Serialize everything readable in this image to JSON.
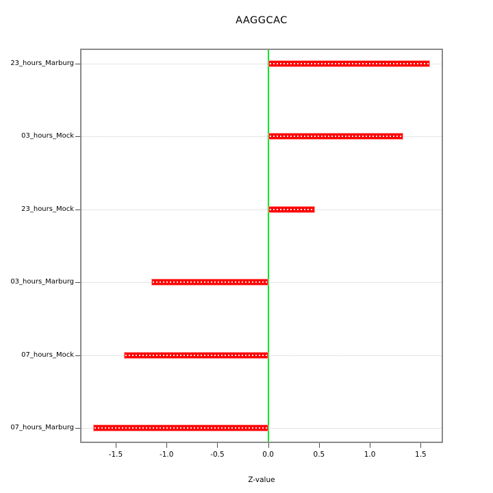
{
  "chart_data": {
    "type": "bar",
    "orientation": "horizontal",
    "title": "AAGGCAC",
    "xlabel": "Z-value",
    "ylabel": "",
    "categories_top_to_bottom": [
      "23_hours_Marburg",
      "03_hours_Mock",
      "23_hours_Mock",
      "03_hours_Marburg",
      "07_hours_Mock",
      "07_hours_Marburg"
    ],
    "values_top_to_bottom": [
      1.59,
      1.33,
      0.46,
      -1.15,
      -1.42,
      -1.72
    ],
    "x_ticks": [
      -1.5,
      -1.0,
      -0.5,
      0.0,
      0.5,
      1.0,
      1.5
    ],
    "x_tick_labels": [
      "-1.5",
      "-1.0",
      "-0.5",
      "0.0",
      "0.5",
      "1.0",
      "1.5"
    ],
    "xlim": [
      -1.85,
      1.72
    ],
    "grid": "horizontal dotted line per category",
    "legend": "none",
    "colors": {
      "bar_fill": "#ff0000",
      "bar_border": "#ff9e9e",
      "zero_line": "#00e81c",
      "grid_line": "#c9c9c9",
      "frame": "#8a8a8a",
      "tick": "#4a4a4a",
      "text": "#000000",
      "background": "#ffffff"
    }
  }
}
